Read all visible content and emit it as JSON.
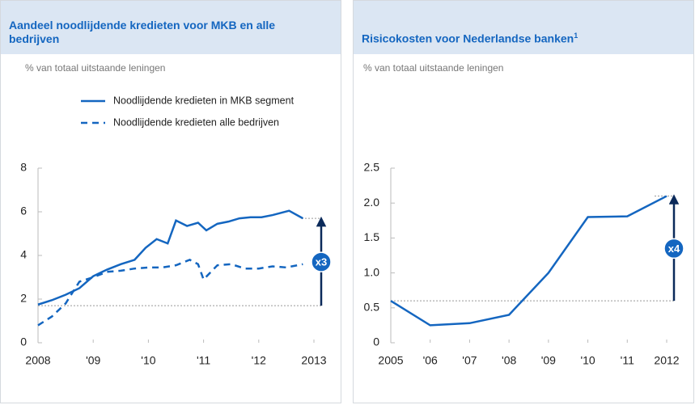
{
  "chart_data": [
    {
      "type": "line",
      "title": "Aandeel noodlijdende kredieten voor MKB en alle bedrijven",
      "subtitle": "% van totaal uitstaande leningen",
      "xlim": [
        2008,
        2013
      ],
      "xticks": [
        2008,
        {
          "value": 2009,
          "label": "'09"
        },
        {
          "value": 2010,
          "label": "'10"
        },
        {
          "value": 2011,
          "label": "'11"
        },
        {
          "value": 2012,
          "label": "'12"
        },
        2013
      ],
      "ylim": [
        0,
        8
      ],
      "yticks": [
        0,
        2,
        4,
        6,
        8
      ],
      "legend": "top",
      "series": [
        {
          "name": "Noodlijdende kredieten in MKB segment",
          "color": "#1466c0",
          "style": "solid",
          "x": [
            2008,
            2008.25,
            2008.5,
            2008.75,
            2009,
            2009.25,
            2009.5,
            2009.75,
            2009.95,
            2010.15,
            2010.35,
            2010.5,
            2010.7,
            2010.9,
            2011.05,
            2011.25,
            2011.45,
            2011.65,
            2011.85,
            2012.05,
            2012.25,
            2012.55,
            2012.8
          ],
          "values": [
            1.75,
            1.95,
            2.2,
            2.5,
            3.05,
            3.35,
            3.6,
            3.8,
            4.35,
            4.75,
            4.55,
            5.6,
            5.35,
            5.5,
            5.15,
            5.45,
            5.55,
            5.7,
            5.75,
            5.75,
            5.85,
            6.05,
            5.7
          ]
        },
        {
          "name": "Noodlijdende kredieten alle bedrijven",
          "color": "#1466c0",
          "style": "dashed",
          "x": [
            2008,
            2008.25,
            2008.5,
            2008.75,
            2009,
            2009.25,
            2009.5,
            2009.75,
            2010,
            2010.25,
            2010.5,
            2010.75,
            2010.9,
            2011,
            2011.25,
            2011.5,
            2011.75,
            2012,
            2012.25,
            2012.5,
            2012.8
          ],
          "values": [
            0.8,
            1.2,
            1.8,
            2.8,
            3.0,
            3.25,
            3.3,
            3.4,
            3.45,
            3.45,
            3.55,
            3.8,
            3.6,
            2.9,
            3.55,
            3.6,
            3.4,
            3.4,
            3.5,
            3.45,
            3.6
          ]
        }
      ],
      "annotation": {
        "label": "x3",
        "from": 1.7,
        "to": 5.7
      }
    },
    {
      "type": "line",
      "title": "Risicokosten voor Nederlandse banken",
      "title_footnote": "1",
      "subtitle": "% van totaal uitstaande leningen",
      "xlim": [
        2005,
        2012
      ],
      "xticks": [
        2005,
        {
          "value": 2006,
          "label": "'06"
        },
        {
          "value": 2007,
          "label": "'07"
        },
        {
          "value": 2008,
          "label": "'08"
        },
        {
          "value": 2009,
          "label": "'09"
        },
        {
          "value": 2010,
          "label": "'10"
        },
        {
          "value": 2011,
          "label": "'11"
        },
        2012
      ],
      "ylim": [
        0,
        2.5
      ],
      "yticks": [
        0,
        0.5,
        {
          "value": 1,
          "label": "1.0"
        },
        1.5,
        {
          "value": 2,
          "label": "2.0"
        },
        2.5
      ],
      "series": [
        {
          "color": "#1466c0",
          "style": "solid",
          "x": [
            2005,
            2006,
            2007,
            2008,
            2009,
            2010,
            2011,
            2012
          ],
          "values": [
            0.6,
            0.25,
            0.28,
            0.4,
            1.0,
            1.8,
            1.81,
            2.1
          ]
        }
      ],
      "annotation": {
        "label": "x4",
        "from": 0.6,
        "to": 2.1
      }
    }
  ]
}
